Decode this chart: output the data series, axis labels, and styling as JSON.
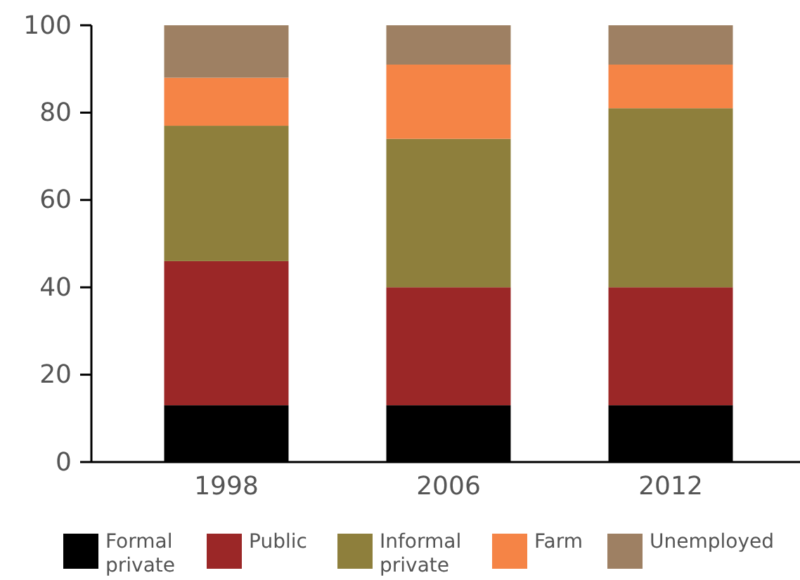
{
  "chart_data": {
    "type": "bar",
    "stacked": true,
    "categories": [
      "1998",
      "2006",
      "2012"
    ],
    "series": [
      {
        "name": "Formal private",
        "color": "#000000",
        "values": [
          13,
          13,
          13
        ]
      },
      {
        "name": "Public",
        "color": "#9b2727",
        "values": [
          33,
          27,
          27
        ]
      },
      {
        "name": "Informal private",
        "color": "#8e7f3c",
        "values": [
          31,
          34,
          41
        ]
      },
      {
        "name": "Farm",
        "color": "#f58446",
        "values": [
          11,
          17,
          10
        ]
      },
      {
        "name": "Unemployed",
        "color": "#9e8063",
        "values": [
          12,
          9,
          9
        ]
      }
    ],
    "ylim": [
      0,
      100
    ],
    "yticks": [
      0,
      20,
      40,
      60,
      80,
      100
    ],
    "legend": "bottom"
  }
}
